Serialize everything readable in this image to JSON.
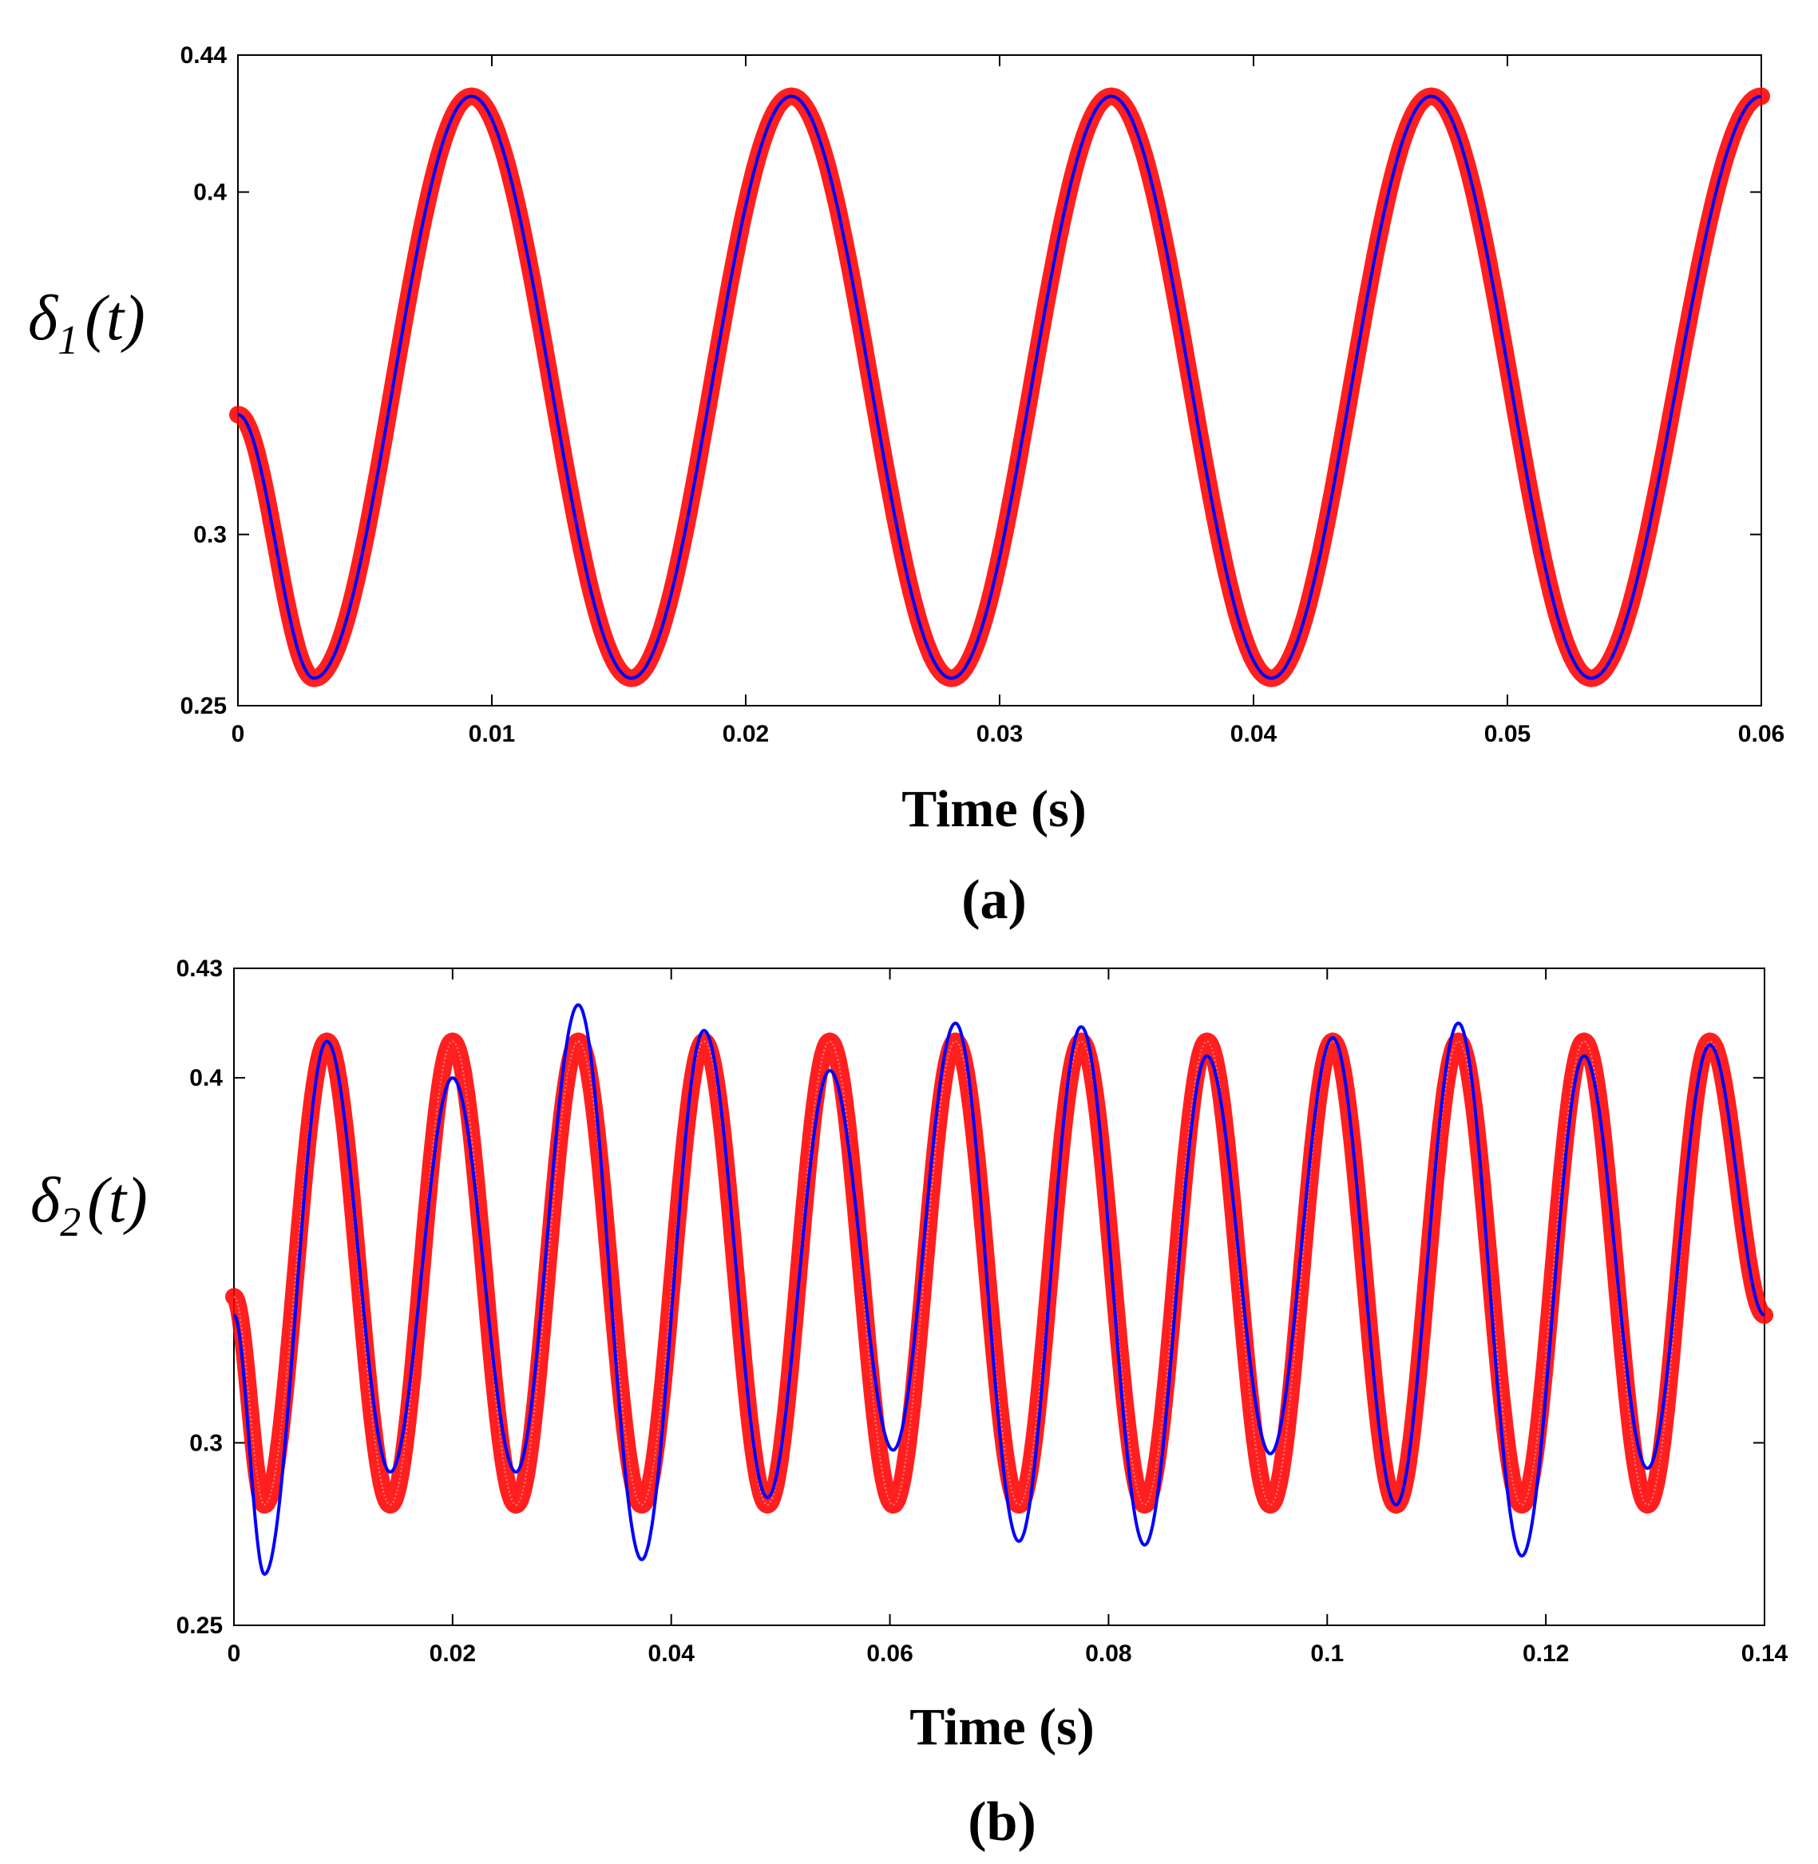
{
  "chart_data": [
    {
      "type": "line",
      "panel_label": "(a)",
      "xlabel": "Time (s)",
      "ylabel": {
        "symbol": "δ",
        "sub": "1",
        "arg": "t"
      },
      "xlim": [
        0,
        0.06
      ],
      "ylim": [
        0.25,
        0.44
      ],
      "xticks": [
        0,
        0.01,
        0.02,
        0.03,
        0.04,
        0.05,
        0.06
      ],
      "xtick_labels": [
        "0",
        "0.01",
        "0.02",
        "0.03",
        "0.04",
        "0.05",
        "0.06"
      ],
      "yticks": [
        0.25,
        0.3,
        0.4,
        0.44
      ],
      "ytick_labels": [
        "0.25",
        "0.3",
        "0.4",
        "0.44"
      ],
      "series": [
        {
          "name": "markers",
          "color": "#ff0000",
          "style": "markers",
          "x": [
            0,
            0.003,
            0.0092,
            0.0155,
            0.0218,
            0.0281,
            0.0344,
            0.0407,
            0.047,
            0.0533,
            0.06
          ],
          "y": [
            0.335,
            0.258,
            0.428,
            0.258,
            0.428,
            0.258,
            0.428,
            0.258,
            0.428,
            0.258,
            0.428
          ]
        },
        {
          "name": "line",
          "color": "#0000ff",
          "style": "line",
          "x": [
            0,
            0.003,
            0.0092,
            0.0155,
            0.0218,
            0.0281,
            0.0344,
            0.0407,
            0.047,
            0.0533,
            0.06
          ],
          "y": [
            0.335,
            0.258,
            0.428,
            0.258,
            0.428,
            0.258,
            0.428,
            0.258,
            0.428,
            0.258,
            0.428
          ]
        }
      ]
    },
    {
      "type": "line",
      "panel_label": "(b)",
      "xlabel": "Time (s)",
      "ylabel": {
        "symbol": "δ",
        "sub": "2",
        "arg": "t"
      },
      "xlim": [
        0,
        0.14
      ],
      "ylim": [
        0.25,
        0.43
      ],
      "xticks": [
        0,
        0.02,
        0.04,
        0.06,
        0.08,
        0.1,
        0.12,
        0.14
      ],
      "xtick_labels": [
        "0",
        "0.02",
        "0.04",
        "0.06",
        "0.08",
        "0.1",
        "0.12",
        "0.14"
      ],
      "yticks": [
        0.25,
        0.3,
        0.4,
        0.43
      ],
      "ytick_labels": [
        "0.25",
        "0.3",
        "0.4",
        "0.43"
      ],
      "series": [
        {
          "name": "markers",
          "color": "#ff0000",
          "style": "markers",
          "x": [
            0,
            0.0028,
            0.0085,
            0.0143,
            0.02,
            0.0258,
            0.0315,
            0.0373,
            0.043,
            0.0488,
            0.0545,
            0.0603,
            0.066,
            0.0718,
            0.0775,
            0.0833,
            0.089,
            0.0948,
            0.1005,
            0.1063,
            0.112,
            0.1178,
            0.1235,
            0.1293,
            0.135,
            0.14
          ],
          "y": [
            0.34,
            0.283,
            0.41,
            0.283,
            0.41,
            0.283,
            0.41,
            0.283,
            0.41,
            0.283,
            0.41,
            0.283,
            0.41,
            0.283,
            0.41,
            0.283,
            0.41,
            0.283,
            0.41,
            0.283,
            0.41,
            0.283,
            0.41,
            0.283,
            0.41,
            0.335
          ]
        },
        {
          "name": "line",
          "color": "#0000ff",
          "style": "line",
          "x": [
            0,
            0.0028,
            0.0085,
            0.0143,
            0.02,
            0.0258,
            0.0315,
            0.0373,
            0.043,
            0.0488,
            0.0545,
            0.0603,
            0.066,
            0.0718,
            0.0775,
            0.0833,
            0.089,
            0.0948,
            0.1005,
            0.1063,
            0.112,
            0.1178,
            0.1235,
            0.1293,
            0.135,
            0.14
          ],
          "y": [
            0.335,
            0.264,
            0.41,
            0.292,
            0.4,
            0.292,
            0.42,
            0.268,
            0.413,
            0.285,
            0.402,
            0.298,
            0.415,
            0.273,
            0.414,
            0.272,
            0.406,
            0.297,
            0.411,
            0.283,
            0.415,
            0.269,
            0.406,
            0.293,
            0.409,
            0.335
          ]
        }
      ]
    }
  ]
}
